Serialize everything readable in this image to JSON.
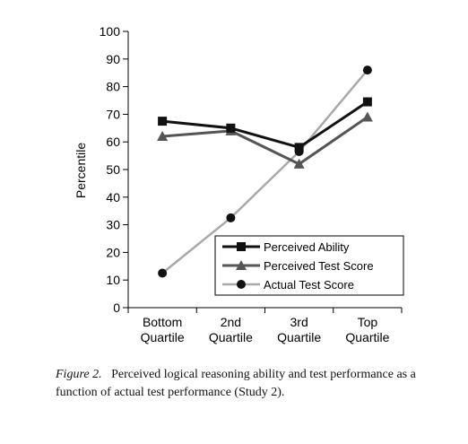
{
  "chart_data": {
    "type": "line",
    "title": "",
    "xlabel": "",
    "ylabel": "Percentile",
    "ylim": [
      0,
      100
    ],
    "yticks": [
      0,
      10,
      20,
      30,
      40,
      50,
      60,
      70,
      80,
      90,
      100
    ],
    "categories": [
      [
        "Bottom",
        "Quartile"
      ],
      [
        "2nd",
        "Quartile"
      ],
      [
        "3rd",
        "Quartile"
      ],
      [
        "Top",
        "Quartile"
      ]
    ],
    "series": [
      {
        "name": "Perceived Ability",
        "values": [
          67.5,
          65,
          58,
          74.5
        ],
        "marker": "square",
        "color": "#111111"
      },
      {
        "name": "Perceived Test Score",
        "values": [
          62,
          64,
          52,
          69
        ],
        "marker": "triangle",
        "color": "#555555"
      },
      {
        "name": "Actual Test Score",
        "values": [
          12.5,
          32.5,
          56.5,
          86
        ],
        "marker": "circle",
        "color": "#a8a8a8"
      }
    ],
    "legend": "bottom-right",
    "grid": false
  },
  "caption": {
    "figure_label": "Figure 2.",
    "text": "Perceived logical reasoning ability and test performance as a function of actual test performance (Study 2)."
  }
}
